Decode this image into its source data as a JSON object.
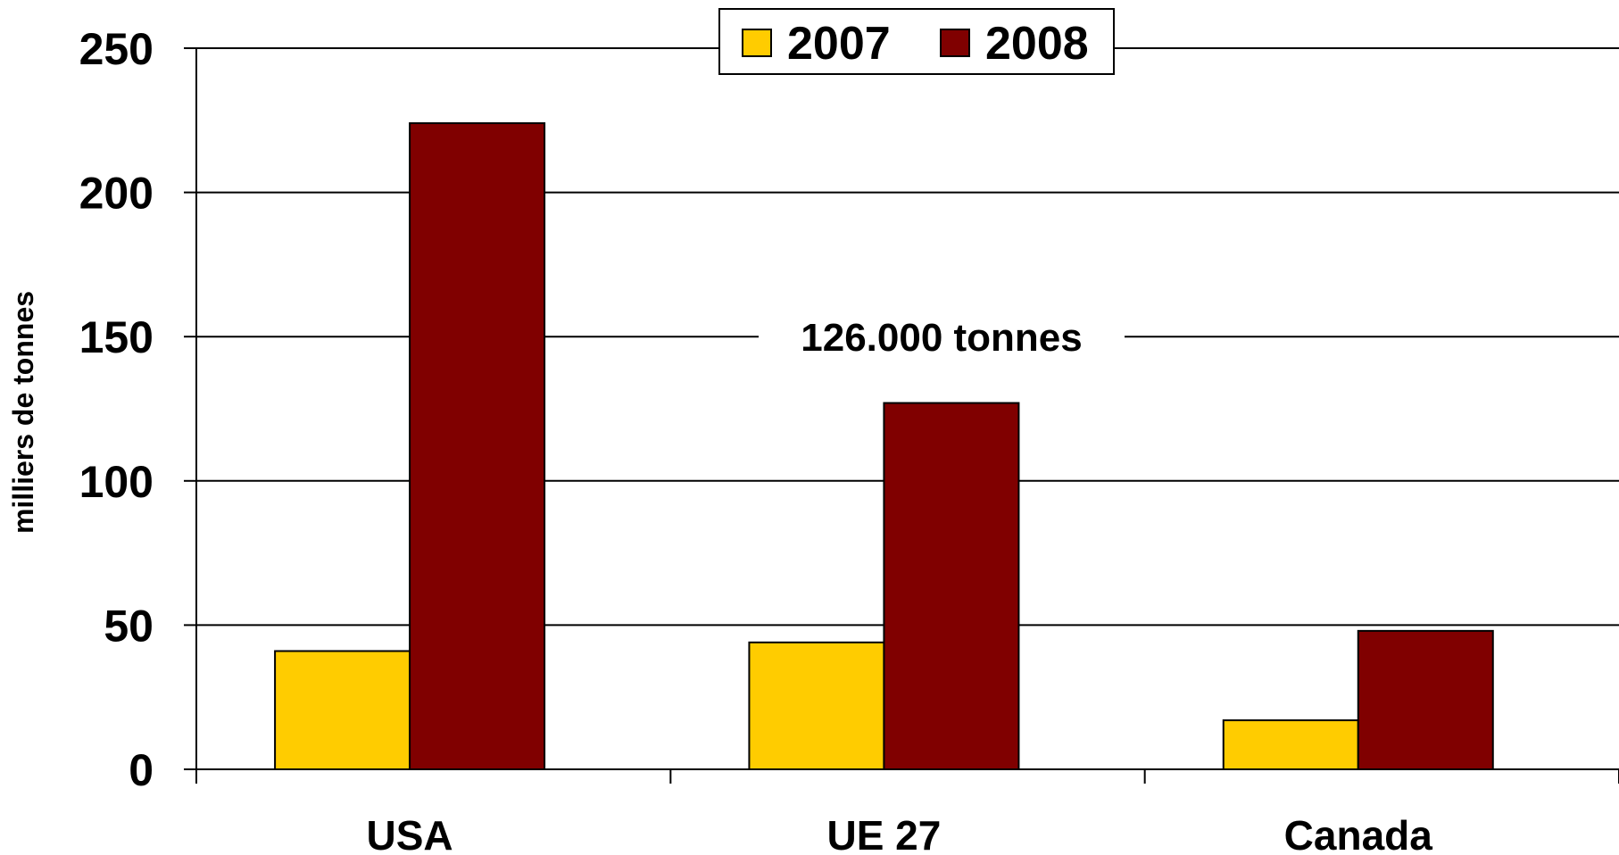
{
  "chart_data": {
    "type": "bar",
    "categories": [
      "USA",
      "UE 27",
      "Canada"
    ],
    "series": [
      {
        "name": "2007",
        "values": [
          41,
          44,
          17
        ],
        "color": "#FFCC00"
      },
      {
        "name": "2008",
        "values": [
          224,
          127,
          48
        ],
        "color": "#800000"
      }
    ],
    "title": "",
    "xlabel": "",
    "ylabel": "milliers de tonnes",
    "ylim": [
      0,
      250
    ],
    "yticks": [
      0,
      50,
      100,
      150,
      200,
      250
    ],
    "grid": true,
    "legend_position": "top-center",
    "annotation": "126.000 tonnes"
  }
}
